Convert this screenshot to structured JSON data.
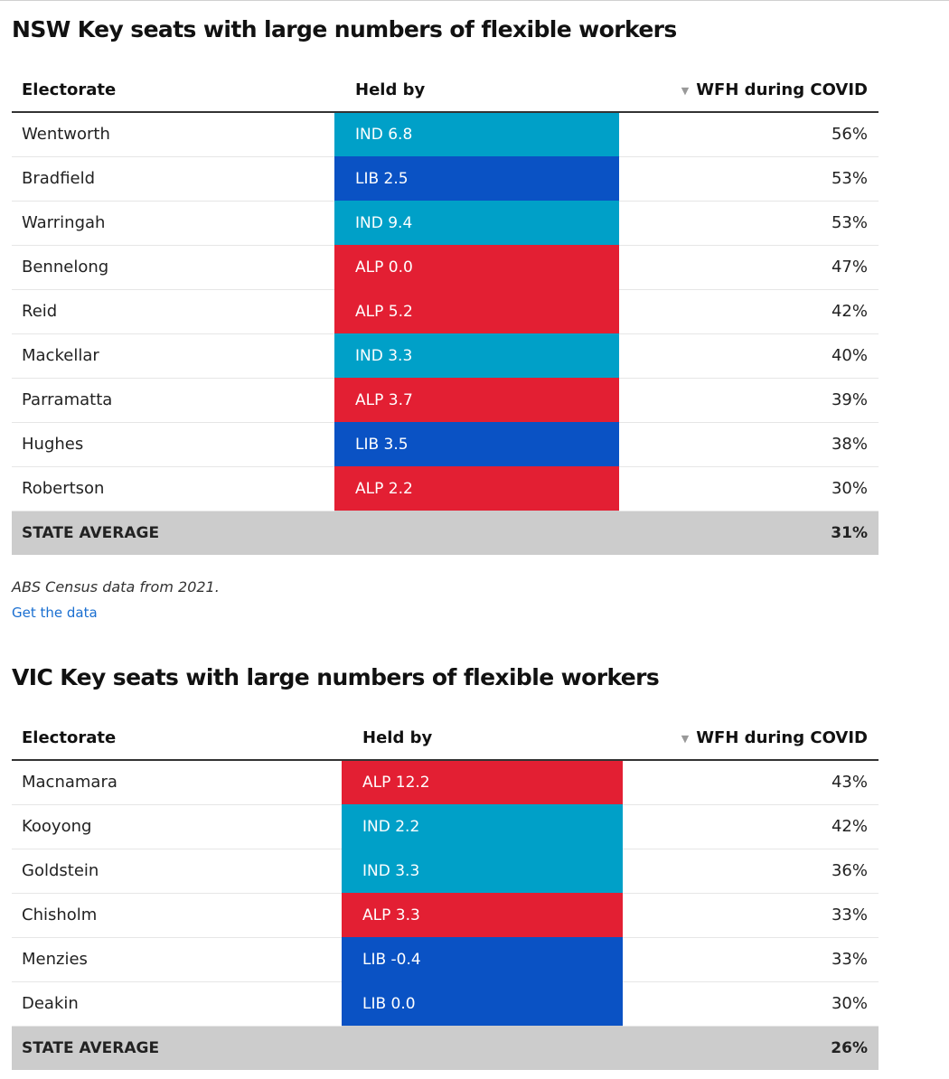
{
  "colors": {
    "IND": "#00a0c8",
    "LIB": "#0a52c4",
    "ALP": "#e31f33",
    "avg_bg": "#cccccc",
    "link": "#1a6fd1"
  },
  "nsw": {
    "title": "NSW Key seats with large numbers of flexible workers",
    "headers": {
      "electorate": "Electorate",
      "held_by": "Held by",
      "wfh": "WFH during COVID"
    },
    "rows": [
      {
        "electorate": "Wentworth",
        "party": "IND",
        "held_by": "IND 6.8",
        "wfh": "56%"
      },
      {
        "electorate": "Bradfield",
        "party": "LIB",
        "held_by": "LIB 2.5",
        "wfh": "53%"
      },
      {
        "electorate": "Warringah",
        "party": "IND",
        "held_by": "IND 9.4",
        "wfh": "53%"
      },
      {
        "electorate": "Bennelong",
        "party": "ALP",
        "held_by": "ALP 0.0",
        "wfh": "47%"
      },
      {
        "electorate": "Reid",
        "party": "ALP",
        "held_by": "ALP 5.2",
        "wfh": "42%"
      },
      {
        "electorate": "Mackellar",
        "party": "IND",
        "held_by": "IND 3.3",
        "wfh": "40%"
      },
      {
        "electorate": "Parramatta",
        "party": "ALP",
        "held_by": "ALP 3.7",
        "wfh": "39%"
      },
      {
        "electorate": "Hughes",
        "party": "LIB",
        "held_by": "LIB 3.5",
        "wfh": "38%"
      },
      {
        "electorate": "Robertson",
        "party": "ALP",
        "held_by": "ALP 2.2",
        "wfh": "30%"
      }
    ],
    "average": {
      "label": "STATE AVERAGE",
      "value": "31%"
    },
    "note": "ABS Census data from 2021.",
    "link": "Get the data"
  },
  "vic": {
    "title": "VIC Key seats with large numbers of flexible workers",
    "headers": {
      "electorate": "Electorate",
      "held_by": "Held by",
      "wfh": "WFH during COVID"
    },
    "rows": [
      {
        "electorate": "Macnamara",
        "party": "ALP",
        "held_by": "ALP 12.2",
        "wfh": "43%"
      },
      {
        "electorate": "Kooyong",
        "party": "IND",
        "held_by": "IND 2.2",
        "wfh": "42%"
      },
      {
        "electorate": "Goldstein",
        "party": "IND",
        "held_by": "IND 3.3",
        "wfh": "36%"
      },
      {
        "electorate": "Chisholm",
        "party": "ALP",
        "held_by": "ALP 3.3",
        "wfh": "33%"
      },
      {
        "electorate": "Menzies",
        "party": "LIB",
        "held_by": "LIB -0.4",
        "wfh": "33%"
      },
      {
        "electorate": "Deakin",
        "party": "LIB",
        "held_by": "LIB 0.0",
        "wfh": "30%"
      }
    ],
    "average": {
      "label": "STATE AVERAGE",
      "value": "26%"
    }
  }
}
